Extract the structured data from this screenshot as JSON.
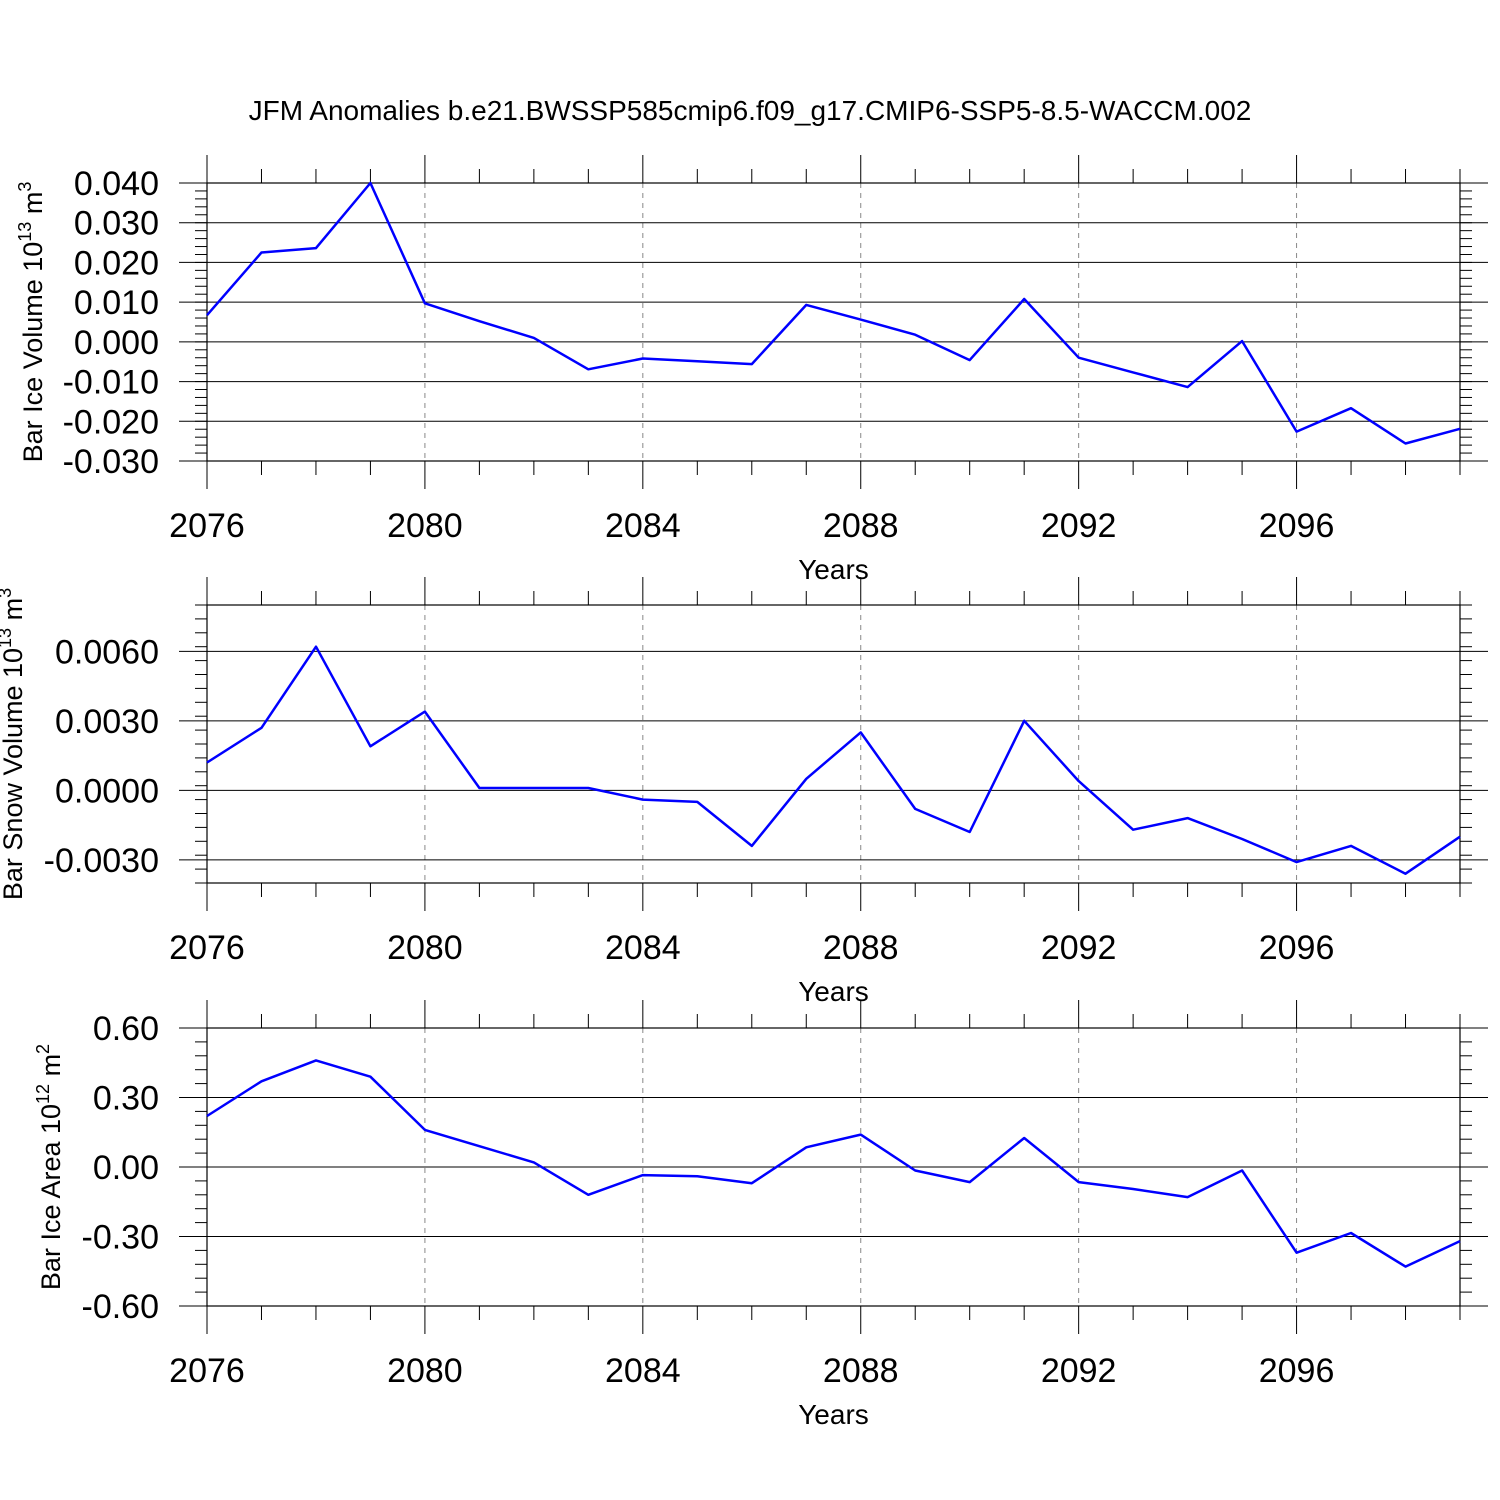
{
  "figure": {
    "title": "JFM Anomalies b.e21.BWSSP585cmip6.f09_g17.CMIP6-SSP5-8.5-WACCM.002",
    "line_color": "#0000ff",
    "grid_color": "#888888"
  },
  "chart_data": [
    {
      "type": "line",
      "title": "",
      "xlabel": "Years",
      "ylabel_text": "Bar Ice Volume 10",
      "ylabel_exp": "13",
      "ylabel_unit": " m",
      "ylabel_unit_exp": "3",
      "xlim": [
        2076,
        2099
      ],
      "ylim": [
        -0.03,
        0.04
      ],
      "x_ticks": [
        2076,
        2080,
        2084,
        2088,
        2092,
        2096
      ],
      "x_tick_labels": [
        "2076",
        "2080",
        "2084",
        "2088",
        "2092",
        "2096"
      ],
      "y_ticks": [
        0.04,
        0.03,
        0.02,
        0.01,
        0.0,
        -0.01,
        -0.02,
        -0.03
      ],
      "y_tick_labels": [
        "0.040",
        "0.030",
        "0.020",
        "0.010",
        "0.000",
        "-0.010",
        "-0.020",
        "-0.030"
      ],
      "grid": "vertical dashed at major x ticks",
      "x": [
        2076,
        2077,
        2078,
        2079,
        2080,
        2081,
        2082,
        2083,
        2084,
        2085,
        2086,
        2087,
        2088,
        2089,
        2090,
        2091,
        2092,
        2093,
        2094,
        2095,
        2096,
        2097,
        2098,
        2099
      ],
      "series": [
        {
          "values": [
            0.0067,
            0.0225,
            0.0236,
            0.04,
            0.0097,
            0.0052,
            0.001,
            -0.0069,
            -0.0042,
            -0.0049,
            -0.0056,
            0.0093,
            0.0056,
            0.0018,
            -0.0046,
            0.0108,
            -0.004,
            -0.0077,
            -0.0114,
            0.0002,
            -0.0226,
            -0.0167,
            -0.0256,
            -0.0219
          ]
        }
      ]
    },
    {
      "type": "line",
      "title": "",
      "xlabel": "Years",
      "ylabel_text": "Bar Snow Volume 10",
      "ylabel_exp": "13",
      "ylabel_unit": " m",
      "ylabel_unit_exp": "3",
      "xlim": [
        2076,
        2099
      ],
      "ylim": [
        -0.004,
        0.008
      ],
      "x_ticks": [
        2076,
        2080,
        2084,
        2088,
        2092,
        2096
      ],
      "x_tick_labels": [
        "2076",
        "2080",
        "2084",
        "2088",
        "2092",
        "2096"
      ],
      "y_ticks": [
        0.006,
        0.003,
        0.0,
        -0.003
      ],
      "y_tick_labels": [
        "0.0060",
        "0.0030",
        "0.0000",
        "-0.0030"
      ],
      "grid": "vertical dashed at major x ticks",
      "x": [
        2076,
        2077,
        2078,
        2079,
        2080,
        2081,
        2082,
        2083,
        2084,
        2085,
        2086,
        2087,
        2088,
        2089,
        2090,
        2091,
        2092,
        2093,
        2094,
        2095,
        2096,
        2097,
        2098,
        2099
      ],
      "series": [
        {
          "values": [
            0.0012,
            0.0027,
            0.0062,
            0.0019,
            0.0034,
            0.0001,
            0.0001,
            0.0001,
            -0.0004,
            -0.0005,
            -0.0024,
            0.0005,
            0.0025,
            -0.0008,
            -0.0018,
            0.003,
            0.0004,
            -0.0017,
            -0.0012,
            -0.0021,
            -0.0031,
            -0.0024,
            -0.0036,
            -0.002
          ]
        }
      ]
    },
    {
      "type": "line",
      "title": "",
      "xlabel": "Years",
      "ylabel_text": "Bar Ice Area 10",
      "ylabel_exp": "12",
      "ylabel_unit": " m",
      "ylabel_unit_exp": "2",
      "xlim": [
        2076,
        2099
      ],
      "ylim": [
        -0.6,
        0.6
      ],
      "x_ticks": [
        2076,
        2080,
        2084,
        2088,
        2092,
        2096
      ],
      "x_tick_labels": [
        "2076",
        "2080",
        "2084",
        "2088",
        "2092",
        "2096"
      ],
      "y_ticks": [
        0.6,
        0.3,
        0.0,
        -0.3,
        -0.6
      ],
      "y_tick_labels": [
        "0.60",
        "0.30",
        "0.00",
        "-0.30",
        "-0.60"
      ],
      "grid": "vertical dashed at major x ticks",
      "x": [
        2076,
        2077,
        2078,
        2079,
        2080,
        2081,
        2082,
        2083,
        2084,
        2085,
        2086,
        2087,
        2088,
        2089,
        2090,
        2091,
        2092,
        2093,
        2094,
        2095,
        2096,
        2097,
        2098,
        2099
      ],
      "series": [
        {
          "values": [
            0.22,
            0.37,
            0.46,
            0.39,
            0.16,
            0.09,
            0.02,
            -0.12,
            -0.035,
            -0.04,
            -0.07,
            0.085,
            0.14,
            -0.015,
            -0.065,
            0.125,
            -0.065,
            -0.095,
            -0.13,
            -0.015,
            -0.37,
            -0.285,
            -0.43,
            -0.32
          ]
        }
      ]
    }
  ]
}
